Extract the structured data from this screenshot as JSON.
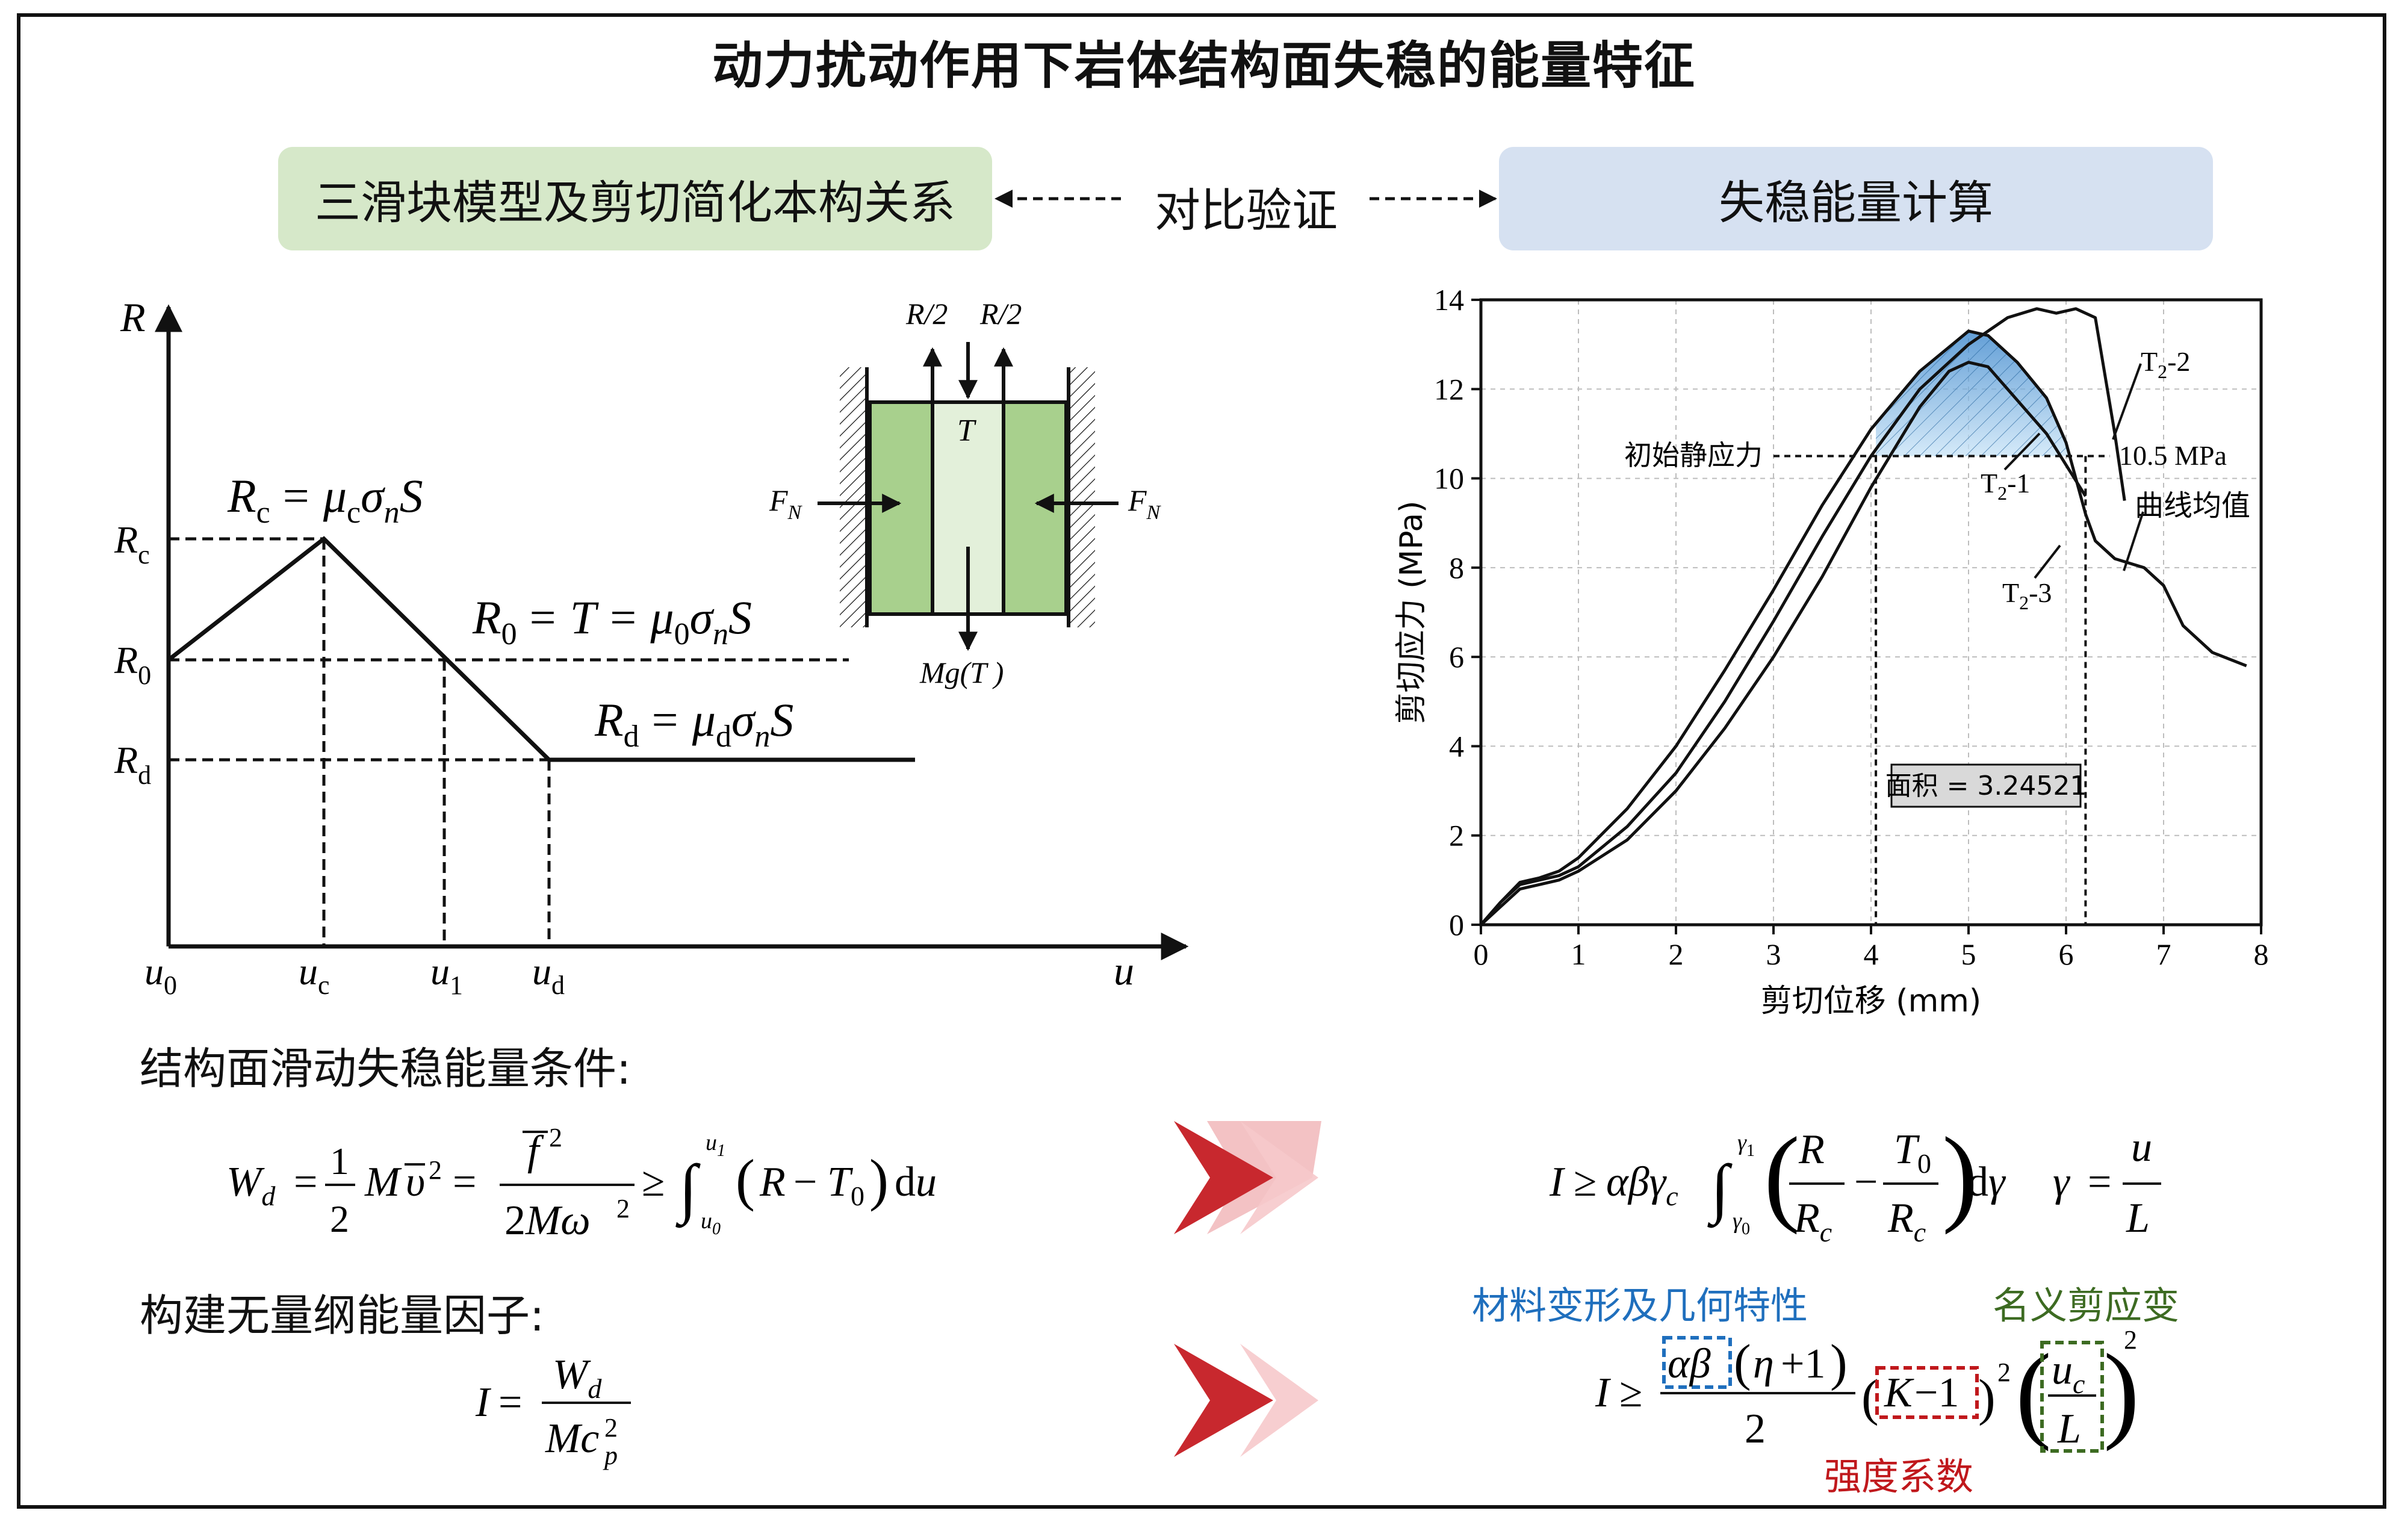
{
  "title": "动力扰动作用下岩体结构面失稳的能量特征",
  "header": {
    "left_box": "三滑块模型及剪切简化本构关系",
    "middle": "对比验证",
    "right_box": "失稳能量计算"
  },
  "model_diagram": {
    "axis_y": "R",
    "axis_x": "u",
    "y_ticks": {
      "rc": "R",
      "rc_sub": "c",
      "r0": "R",
      "r0_sub": "0",
      "rd": "R",
      "rd_sub": "d"
    },
    "x_ticks": {
      "u0": "u",
      "u0_sub": "0",
      "uc": "u",
      "uc_sub": "c",
      "u1": "u",
      "u1_sub": "1",
      "ud": "u",
      "ud_sub": "d"
    },
    "eq_rc": {
      "lhs": "R",
      "lhs_sub": "c",
      "rhs": "= μ",
      "rhs_sub": "c",
      "sig": "σ",
      "sig_sub": "n",
      "tail": "S"
    },
    "eq_r0": {
      "lhs": "R",
      "lhs_sub": "0",
      "mid": "= T = μ",
      "mid_sub": "0",
      "sig": "σ",
      "sig_sub": "n",
      "tail": "S"
    },
    "eq_rd": {
      "lhs": "R",
      "lhs_sub": "d",
      "rhs": "= μ",
      "rhs_sub": "d",
      "sig": "σ",
      "sig_sub": "n",
      "tail": "S"
    },
    "block": {
      "r_half_left": "R/2",
      "r_half_right": "R/2",
      "t": "T",
      "fn": "F",
      "fn_sub": "N",
      "mg": "Mg(T )"
    }
  },
  "chart_data": {
    "type": "line",
    "xlabel": "剪切位移 (mm)",
    "ylabel": "剪切应力 (MPa)",
    "xlim": [
      0,
      8
    ],
    "ylim": [
      0,
      14
    ],
    "x_ticks": [
      0,
      1,
      2,
      3,
      4,
      5,
      6,
      7,
      8
    ],
    "y_ticks": [
      0,
      2,
      4,
      6,
      8,
      10,
      12,
      14
    ],
    "grid": true,
    "series": [
      {
        "name": "T2-1",
        "x": [
          0,
          0.2,
          0.4,
          0.6,
          0.8,
          1,
          1.5,
          2,
          2.5,
          3,
          3.5,
          4,
          4.5,
          4.8,
          5,
          5.2,
          5.4,
          5.6,
          5.8,
          6,
          6.2
        ],
        "y": [
          0,
          0.4,
          0.8,
          0.9,
          1,
          1.2,
          1.9,
          3,
          4.4,
          6,
          7.8,
          9.8,
          11.6,
          12.4,
          12.6,
          12.5,
          12,
          11.5,
          11,
          10.3,
          9.6
        ]
      },
      {
        "name": "T2-2",
        "x": [
          0,
          0.2,
          0.4,
          0.6,
          0.8,
          1,
          1.5,
          2,
          2.5,
          3,
          3.5,
          4,
          4.5,
          5,
          5.4,
          5.7,
          5.9,
          6.1,
          6.3,
          6.5,
          6.6
        ],
        "y": [
          0,
          0.5,
          0.9,
          1,
          1.1,
          1.3,
          2.2,
          3.4,
          5,
          6.8,
          8.7,
          10.5,
          12,
          13,
          13.6,
          13.8,
          13.7,
          13.8,
          13.6,
          11,
          9.5
        ]
      },
      {
        "name": "T2-3",
        "x": [
          0,
          0.2,
          0.4,
          0.6,
          0.8,
          1,
          1.5,
          2,
          2.5,
          3,
          3.5,
          4,
          4.5,
          5,
          5.2,
          5.5,
          5.8,
          6,
          6.1,
          6.2,
          6.3,
          6.5,
          6.8,
          7,
          7.2,
          7.5,
          7.85
        ],
        "y": [
          0,
          0.5,
          0.95,
          1.05,
          1.2,
          1.5,
          2.6,
          4,
          5.7,
          7.5,
          9.4,
          11.1,
          12.4,
          13.3,
          13.2,
          12.6,
          11.8,
          10.8,
          10,
          9.2,
          8.6,
          8.2,
          8,
          7.6,
          6.7,
          6.1,
          5.8
        ]
      }
    ],
    "labels": {
      "t2_1": "T2-1",
      "t2_2": "T2-2",
      "t2_3": "T2-3",
      "mean": "曲线均值"
    },
    "annotations": {
      "threshold_label": "初始静应力",
      "threshold_value_label": "10.5 MPa",
      "threshold_value": 10.5,
      "area_label": "面积 = 3.24521",
      "x_start": 4.05,
      "x_end": 6.2
    }
  },
  "bottom": {
    "energy_condition_label": "结构面滑动失稳能量条件:",
    "factor_label": "构建无量纲能量因子:",
    "label_material": "材料变形及几何特性",
    "label_nominal": "名义剪应变",
    "label_strength": "强度系数"
  },
  "colors": {
    "green_box": "#d6e8c9",
    "blue_box": "#d6e1f1",
    "block_green": "#a8d08d",
    "area_fill": "#6fb1e4",
    "arrow_red": "#c8282e",
    "label_blue": "#1f6fbd",
    "label_green": "#3d6b22",
    "label_red": "#c0181c"
  }
}
